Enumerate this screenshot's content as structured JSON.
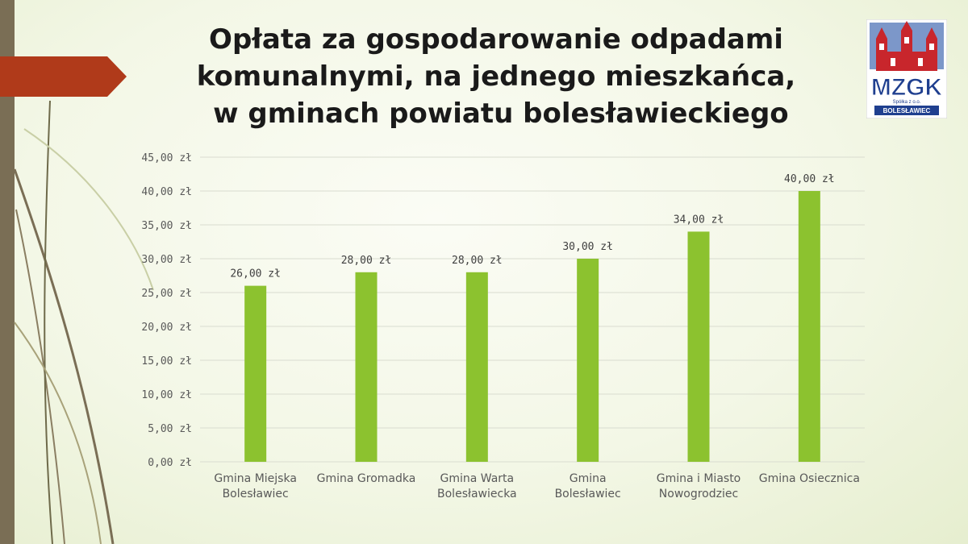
{
  "slide": {
    "title_lines": [
      "Opłata za gospodarowanie odpadami",
      "komunalnymi, na jednego mieszkańca,",
      " w gminach powiatu bolesławieckiego"
    ],
    "colors": {
      "bar": "#8cc22f",
      "accent_arrow": "#b03a1a",
      "side_bar": "#7a6e55"
    }
  },
  "logo": {
    "text": "MZGK",
    "subtext": "Spółka z o.o.",
    "city": "BOLESŁAWIEC"
  },
  "chart_data": {
    "type": "bar",
    "title": "",
    "xlabel": "",
    "ylabel": "",
    "ylim": [
      0,
      45
    ],
    "y_ticks": [
      "0,00 zł",
      "5,00 zł",
      "10,00 zł",
      "15,00 zł",
      "20,00 zł",
      "25,00 zł",
      "30,00 zł",
      "35,00 zł",
      "40,00 zł",
      "45,00 zł"
    ],
    "categories": [
      [
        "Gmina Miejska",
        "Bolesławiec"
      ],
      [
        "Gmina Gromadka"
      ],
      [
        "Gmina Warta",
        "Bolesławiecka"
      ],
      [
        "Gmina",
        "Bolesławiec"
      ],
      [
        "Gmina i Miasto",
        "Nowogrodziec"
      ],
      [
        "Gmina Osiecznica"
      ]
    ],
    "values": [
      26,
      28,
      28,
      30,
      34,
      40
    ],
    "data_labels": [
      "26,00 zł",
      "28,00 zł",
      "28,00 zł",
      "30,00 zł",
      "34,00 zł",
      "40,00 zł"
    ],
    "grid": true,
    "legend": "none"
  }
}
